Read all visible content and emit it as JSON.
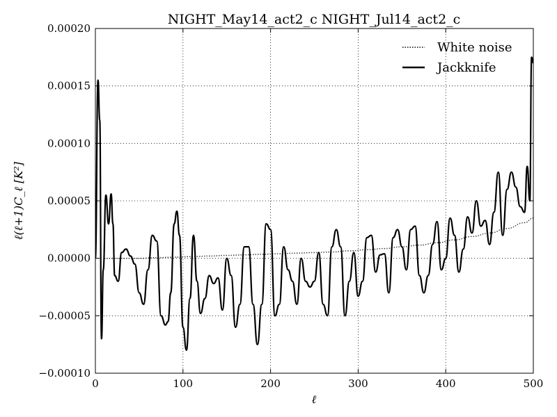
{
  "chart_data": {
    "type": "line",
    "title": "NIGHT_May14_act2_c NIGHT_Jul14_act2_c",
    "xlabel": "ℓ",
    "ylabel": "ℓ(ℓ+1)C_ℓ [K²]",
    "xlim": [
      0,
      500
    ],
    "ylim": [
      -0.0001,
      0.0002
    ],
    "x_ticks": [
      0,
      100,
      200,
      300,
      400,
      500
    ],
    "x_tick_labels": [
      "0",
      "100",
      "200",
      "300",
      "400",
      "500"
    ],
    "y_ticks": [
      -0.0001,
      -5e-05,
      0,
      5e-05,
      0.0001,
      0.00015,
      0.0002
    ],
    "y_tick_labels": [
      "−0.00010",
      "−0.00005",
      "0.00000",
      "0.00005",
      "0.00010",
      "0.00015",
      "0.00020"
    ],
    "grid": true,
    "legend_position": "top-right",
    "series": [
      {
        "name": "White noise",
        "style": "dotted",
        "color": "#000000",
        "x": [
          10,
          30,
          50,
          70,
          90,
          110,
          130,
          150,
          170,
          190,
          210,
          230,
          250,
          270,
          290,
          310,
          330,
          350,
          370,
          390,
          410,
          430,
          450,
          470,
          490,
          500
        ],
        "y": [
          0,
          0,
          0,
          5e-07,
          1e-06,
          1.5e-06,
          2e-06,
          2.5e-06,
          3e-06,
          3.5e-06,
          4e-06,
          4.5e-06,
          5e-06,
          5.5e-06,
          6.5e-06,
          7.5e-06,
          8.5e-06,
          1e-05,
          1.15e-05,
          1.35e-05,
          1.6e-05,
          1.9e-05,
          2.2e-05,
          2.6e-05,
          3.1e-05,
          3.5e-05
        ]
      },
      {
        "name": "Jackknife",
        "style": "solid",
        "color": "#000000",
        "x": [
          0,
          3,
          5,
          7,
          9,
          12,
          15,
          18,
          20,
          22,
          26,
          30,
          35,
          40,
          45,
          50,
          55,
          60,
          65,
          70,
          75,
          80,
          83,
          86,
          90,
          93,
          96,
          100,
          104,
          108,
          112,
          116,
          120,
          125,
          130,
          135,
          140,
          145,
          150,
          155,
          160,
          165,
          170,
          175,
          180,
          185,
          190,
          195,
          200,
          205,
          210,
          215,
          220,
          225,
          230,
          235,
          240,
          245,
          250,
          255,
          260,
          265,
          270,
          275,
          280,
          285,
          290,
          295,
          300,
          305,
          310,
          315,
          320,
          325,
          330,
          335,
          340,
          345,
          350,
          355,
          360,
          365,
          370,
          375,
          380,
          385,
          390,
          395,
          400,
          405,
          410,
          415,
          420,
          425,
          430,
          435,
          440,
          445,
          450,
          455,
          460,
          465,
          470,
          475,
          480,
          485,
          490,
          493,
          496,
          498,
          500
        ],
        "y": [
          0.0,
          0.000155,
          0.00012,
          -7e-05,
          -1e-05,
          5.5e-05,
          3e-05,
          5.6e-05,
          3e-05,
          -1.5e-05,
          -2e-05,
          5e-06,
          8e-06,
          2e-06,
          -5e-06,
          -3e-05,
          -4e-05,
          -1e-05,
          2e-05,
          1.5e-05,
          -5e-05,
          -5.8e-05,
          -5.5e-05,
          -3e-05,
          3e-05,
          4.1e-05,
          2e-05,
          -6e-05,
          -8e-05,
          -3.5e-05,
          2e-05,
          -2e-05,
          -4.8e-05,
          -3.5e-05,
          -1.5e-05,
          -2.2e-05,
          -1.7e-05,
          -4.5e-05,
          0.0,
          -1.5e-05,
          -6e-05,
          -4e-05,
          1e-05,
          1e-05,
          -4e-05,
          -7.5e-05,
          -4e-05,
          3e-05,
          2.5e-05,
          -5e-05,
          -4e-05,
          1e-05,
          -1e-05,
          -2e-05,
          -4e-05,
          0.0,
          -2e-05,
          -2.5e-05,
          -2e-05,
          5e-06,
          -4e-05,
          -5e-05,
          1e-05,
          2.5e-05,
          1e-05,
          -5e-05,
          -2e-05,
          5e-06,
          -3.3e-05,
          -2e-05,
          1.8e-05,
          2e-05,
          -1.2e-05,
          3e-06,
          4e-06,
          -3e-05,
          1.8e-05,
          2.5e-05,
          1e-05,
          -1e-05,
          2.5e-05,
          2.8e-05,
          -1.5e-05,
          -3e-05,
          -1.5e-05,
          1.2e-05,
          3.2e-05,
          -1e-05,
          0.0,
          3.5e-05,
          2e-05,
          -1.2e-05,
          8e-06,
          3.6e-05,
          2.2e-05,
          5e-05,
          2.8e-05,
          3.3e-05,
          1.2e-05,
          4e-05,
          7.5e-05,
          2e-05,
          6e-05,
          7.5e-05,
          6.2e-05,
          4.5e-05,
          4e-05,
          8e-05,
          5e-05,
          0.000175,
          0.00017
        ]
      }
    ]
  }
}
